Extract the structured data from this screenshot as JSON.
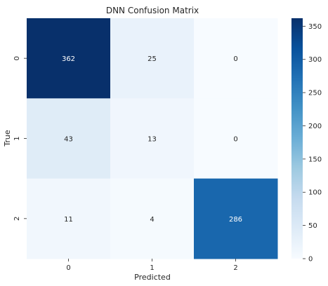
{
  "chart_data": {
    "type": "heatmap",
    "title": "DNN Confusion Matrix",
    "xlabel": "Predicted",
    "ylabel": "True",
    "x_categories": [
      "0",
      "1",
      "2"
    ],
    "y_categories": [
      "0",
      "1",
      "2"
    ],
    "values": [
      [
        362,
        25,
        0
      ],
      [
        43,
        13,
        0
      ],
      [
        11,
        4,
        286
      ]
    ],
    "colormap": "Blues",
    "colorbar": {
      "range": [
        0,
        362
      ],
      "ticks": [
        0,
        50,
        100,
        150,
        200,
        250,
        300,
        350
      ],
      "tick_labels": [
        "0",
        "50",
        "100",
        "150",
        "200",
        "250",
        "300",
        "350"
      ]
    },
    "annotations": true
  }
}
